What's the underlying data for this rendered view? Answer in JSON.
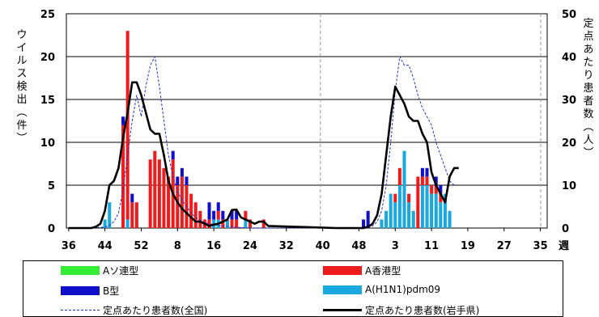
{
  "chart_data": {
    "type": "bar",
    "y_left_label": "ウイルス検出(件)",
    "y_right_label": "定点あたり患者数(人)",
    "x_unit": "週",
    "y_left_range": [
      0,
      25
    ],
    "y_left_ticks": [
      "0",
      "5",
      "10",
      "15",
      "20",
      "25"
    ],
    "y_right_range": [
      0,
      50
    ],
    "y_right_ticks": [
      "0",
      "10",
      "20",
      "30",
      "40",
      "50"
    ],
    "x_ticks": [
      "36",
      "44",
      "52",
      "8",
      "16",
      "24",
      "32",
      "40",
      "48",
      "3",
      "11",
      "19",
      "27",
      "35"
    ],
    "x_positions": [
      1,
      9,
      17,
      25,
      33,
      41,
      49,
      57,
      65,
      73,
      81,
      89,
      97,
      105
    ],
    "x_range": [
      0.5,
      106.5
    ],
    "grid": "horizontal gridlines; dashed vertical season divider",
    "legend_position": "bottom",
    "colors": {
      "soviet": "#33ee33",
      "hongkong": "#ee1c1c",
      "b": "#1010cc",
      "pdm": "#1aa8e0",
      "national": "#2233cc",
      "iwate": "#000000"
    },
    "legend": {
      "soviet": "Aソ連型",
      "hongkong": "A香港型",
      "b": "B型",
      "pdm": "A(H1N1)pdm09",
      "national": "定点あたり患者数(全国)",
      "iwate": "定点あたり患者数(岩手県)"
    },
    "bar_series": [
      {
        "name": "A(H1N1)pdm09",
        "key": "pdm",
        "x": [
          9,
          10,
          14,
          33,
          34,
          36,
          40,
          70,
          71,
          72,
          73,
          74,
          75,
          76,
          77,
          79,
          80,
          81,
          82,
          83,
          84,
          85
        ],
        "values": [
          1,
          3,
          1,
          1,
          1,
          1,
          1,
          1,
          2,
          4,
          3,
          5,
          9,
          3,
          2,
          5,
          5,
          4,
          4,
          3,
          4,
          2
        ]
      },
      {
        "name": "A香港型",
        "key": "hongkong",
        "x": [
          13,
          14,
          15,
          16,
          19,
          20,
          21,
          22,
          23,
          24,
          25,
          26,
          27,
          28,
          29,
          30,
          31,
          32,
          34,
          35,
          37,
          38,
          40,
          41,
          44,
          73,
          74,
          76,
          78,
          79,
          80,
          81,
          82,
          83
        ],
        "values": [
          12,
          22,
          3,
          3,
          8,
          9,
          8,
          7,
          6,
          8,
          5,
          6,
          5,
          4,
          3,
          2,
          1,
          1,
          1,
          1,
          1,
          1,
          1,
          1,
          1,
          1,
          2,
          1,
          6,
          1,
          1,
          1,
          1,
          1
        ]
      },
      {
        "name": "B型",
        "key": "b",
        "x": [
          13,
          15,
          24,
          25,
          26,
          27,
          32,
          33,
          34,
          35,
          37,
          38,
          66,
          67,
          79,
          80,
          82,
          83
        ],
        "values": [
          1,
          1,
          1,
          1,
          1,
          1,
          2,
          1,
          1,
          1,
          1,
          1,
          1,
          2,
          1,
          1,
          1,
          1
        ]
      }
    ],
    "line_series": [
      {
        "name": "定点あたり患者数(全国)",
        "key": "national",
        "style": "dashed",
        "x": [
          1,
          5,
          9,
          10,
          11,
          12,
          13,
          14,
          15,
          16,
          17,
          18,
          19,
          20,
          21,
          22,
          23,
          24,
          25,
          26,
          27,
          28,
          29,
          30,
          31,
          32,
          33,
          34,
          35,
          36,
          37,
          38,
          39,
          40,
          41,
          42,
          43,
          44,
          45,
          60,
          66,
          67,
          68,
          69,
          70,
          71,
          72,
          73,
          74,
          75,
          76,
          77,
          78,
          79,
          80,
          81,
          82,
          83,
          84,
          85,
          86
        ],
        "values": [
          0,
          0,
          0.2,
          0.6,
          1.5,
          3.5,
          9,
          17,
          25,
          31,
          26,
          33,
          38,
          40,
          33,
          25,
          17,
          12,
          8.5,
          6.5,
          5,
          3.5,
          2.5,
          1.8,
          1.3,
          1.0,
          0.8,
          0.6,
          0.5,
          0.4,
          0.3,
          0.2,
          0.1,
          0.1,
          0,
          0,
          0,
          0,
          0,
          0,
          0,
          0.2,
          0.5,
          1.5,
          4,
          10,
          20,
          32,
          40,
          38,
          38,
          35,
          31,
          28,
          26,
          24,
          20,
          17,
          14,
          11,
          10
        ]
      },
      {
        "name": "定点あたり患者数(岩手県)",
        "key": "iwate",
        "style": "solid",
        "x": [
          1,
          6,
          7,
          8,
          9,
          10,
          11,
          12,
          13,
          14,
          15,
          16,
          17,
          18,
          19,
          20,
          21,
          22,
          23,
          24,
          25,
          26,
          27,
          28,
          29,
          30,
          31,
          32,
          33,
          34,
          35,
          36,
          37,
          38,
          39,
          40,
          41,
          42,
          43,
          44,
          45,
          60,
          65,
          66,
          67,
          68,
          69,
          70,
          71,
          72,
          73,
          74,
          75,
          76,
          77,
          78,
          79,
          80,
          81,
          82,
          83,
          84,
          85,
          86,
          87
        ],
        "values": [
          0,
          0,
          0.3,
          1,
          4,
          10,
          11,
          14,
          21,
          27,
          34,
          34,
          31,
          27,
          23,
          22,
          22,
          17,
          11,
          8,
          6,
          4.5,
          3.5,
          2.5,
          1.5,
          1.5,
          1.0,
          0.5,
          0.8,
          1,
          1.5,
          2,
          4.2,
          4.3,
          2.5,
          2,
          1.5,
          1,
          1.5,
          1.5,
          0.5,
          0,
          0,
          0,
          0.3,
          1,
          3,
          8,
          17,
          26,
          33,
          31,
          29,
          26,
          25,
          25,
          22,
          20,
          13,
          10,
          8,
          6,
          12,
          14,
          14
        ]
      }
    ]
  }
}
